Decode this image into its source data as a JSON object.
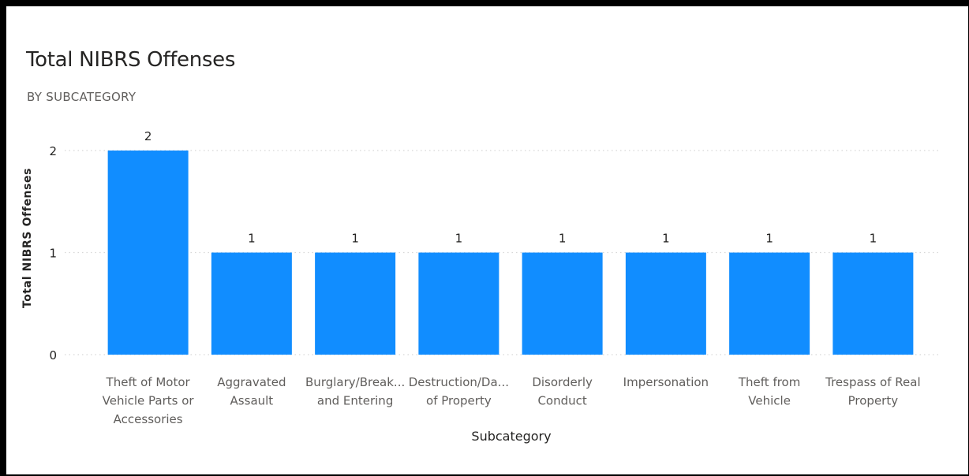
{
  "header": {
    "title": "Total NIBRS Offenses",
    "subtitle": "BY SUBCATEGORY"
  },
  "colors": {
    "bar": "#118DFF",
    "text": "#252423",
    "muted": "#605e5c",
    "grid": "#d6d6d6"
  },
  "chart_data": {
    "type": "bar",
    "title": "Total NIBRS Offenses",
    "subtitle": "BY SUBCATEGORY",
    "xlabel": "Subcategory",
    "ylabel": "Total NIBRS Offenses",
    "ylim": [
      0,
      2
    ],
    "yticks": [
      "0",
      "1",
      "2"
    ],
    "grid": true,
    "categories": [
      "Theft of Motor Vehicle Parts or Accessories",
      "Aggravated Assault",
      "Burglary/Breaking and Entering",
      "Destruction/Damage/Vandalism of Property",
      "Disorderly Conduct",
      "Impersonation",
      "Theft from Vehicle",
      "Trespass of Real Property"
    ],
    "category_labels": [
      [
        "Theft of Motor",
        "Vehicle Parts or",
        "Accessories"
      ],
      [
        "Aggravated",
        "Assault"
      ],
      [
        "Burglary/Break...",
        "and Entering"
      ],
      [
        "Destruction/Da...",
        "of Property"
      ],
      [
        "Disorderly",
        "Conduct"
      ],
      [
        "Impersonation"
      ],
      [
        "Theft from",
        "Vehicle"
      ],
      [
        "Trespass of Real",
        "Property"
      ]
    ],
    "values": [
      2,
      1,
      1,
      1,
      1,
      1,
      1,
      1
    ],
    "data_labels": [
      "2",
      "1",
      "1",
      "1",
      "1",
      "1",
      "1",
      "1"
    ]
  }
}
